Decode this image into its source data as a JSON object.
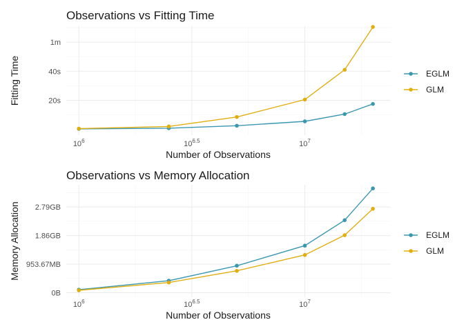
{
  "chart_data": [
    {
      "type": "line",
      "title": "Observations vs Fitting Time",
      "xlabel": "Number of Observations",
      "ylabel": "Fitting Time",
      "x_scale": "log10",
      "x_ticks": [
        {
          "value": 1000000,
          "base": "10",
          "exp": "6"
        },
        {
          "value": 3162278,
          "base": "10",
          "exp": "6.5"
        },
        {
          "value": 10000000,
          "base": "10",
          "exp": "7"
        }
      ],
      "y_ticks": [
        {
          "value": 20,
          "label": "20s"
        },
        {
          "value": 40,
          "label": "40s"
        },
        {
          "value": 60,
          "label": "1m"
        }
      ],
      "xlim": [
        880000,
        24000000
      ],
      "ylim": [
        -4,
        71
      ],
      "x": [
        1000000,
        2500000,
        5000000,
        10000000,
        15000000,
        20000000
      ],
      "series": [
        {
          "name": "EGLM",
          "color": "#3a97b0",
          "values": [
            0.3,
            0.8,
            2.5,
            5.5,
            10.5,
            17.5
          ]
        },
        {
          "name": "GLM",
          "color": "#e0ae0f",
          "values": [
            0.5,
            2.0,
            8.5,
            20.5,
            41.0,
            70.5
          ]
        }
      ],
      "grid": true,
      "legend_position": "right"
    },
    {
      "type": "line",
      "title": "Observations vs Memory Allocation",
      "xlabel": "Number of Observations",
      "ylabel": "Memory Allocation",
      "x_scale": "log10",
      "x_ticks": [
        {
          "value": 1000000,
          "base": "10",
          "exp": "6"
        },
        {
          "value": 3162278,
          "base": "10",
          "exp": "6.5"
        },
        {
          "value": 10000000,
          "base": "10",
          "exp": "7"
        }
      ],
      "y_ticks": [
        {
          "value": 0,
          "label": "0B"
        },
        {
          "value": 953.67,
          "label": "953.67MB"
        },
        {
          "value": 1907.35,
          "label": "1.86GB"
        },
        {
          "value": 2861.02,
          "label": "2.79GB"
        }
      ],
      "xlim": [
        880000,
        24000000
      ],
      "ylim": [
        -150,
        3600
      ],
      "x": [
        1000000,
        2500000,
        5000000,
        10000000,
        15000000,
        20000000
      ],
      "series": [
        {
          "name": "EGLM",
          "color": "#3a97b0",
          "values": [
            100,
            400,
            900,
            1570,
            2420,
            3480
          ]
        },
        {
          "name": "GLM",
          "color": "#e0ae0f",
          "values": [
            80,
            340,
            730,
            1260,
            1920,
            2800
          ]
        }
      ],
      "grid": true,
      "legend_position": "right"
    }
  ]
}
